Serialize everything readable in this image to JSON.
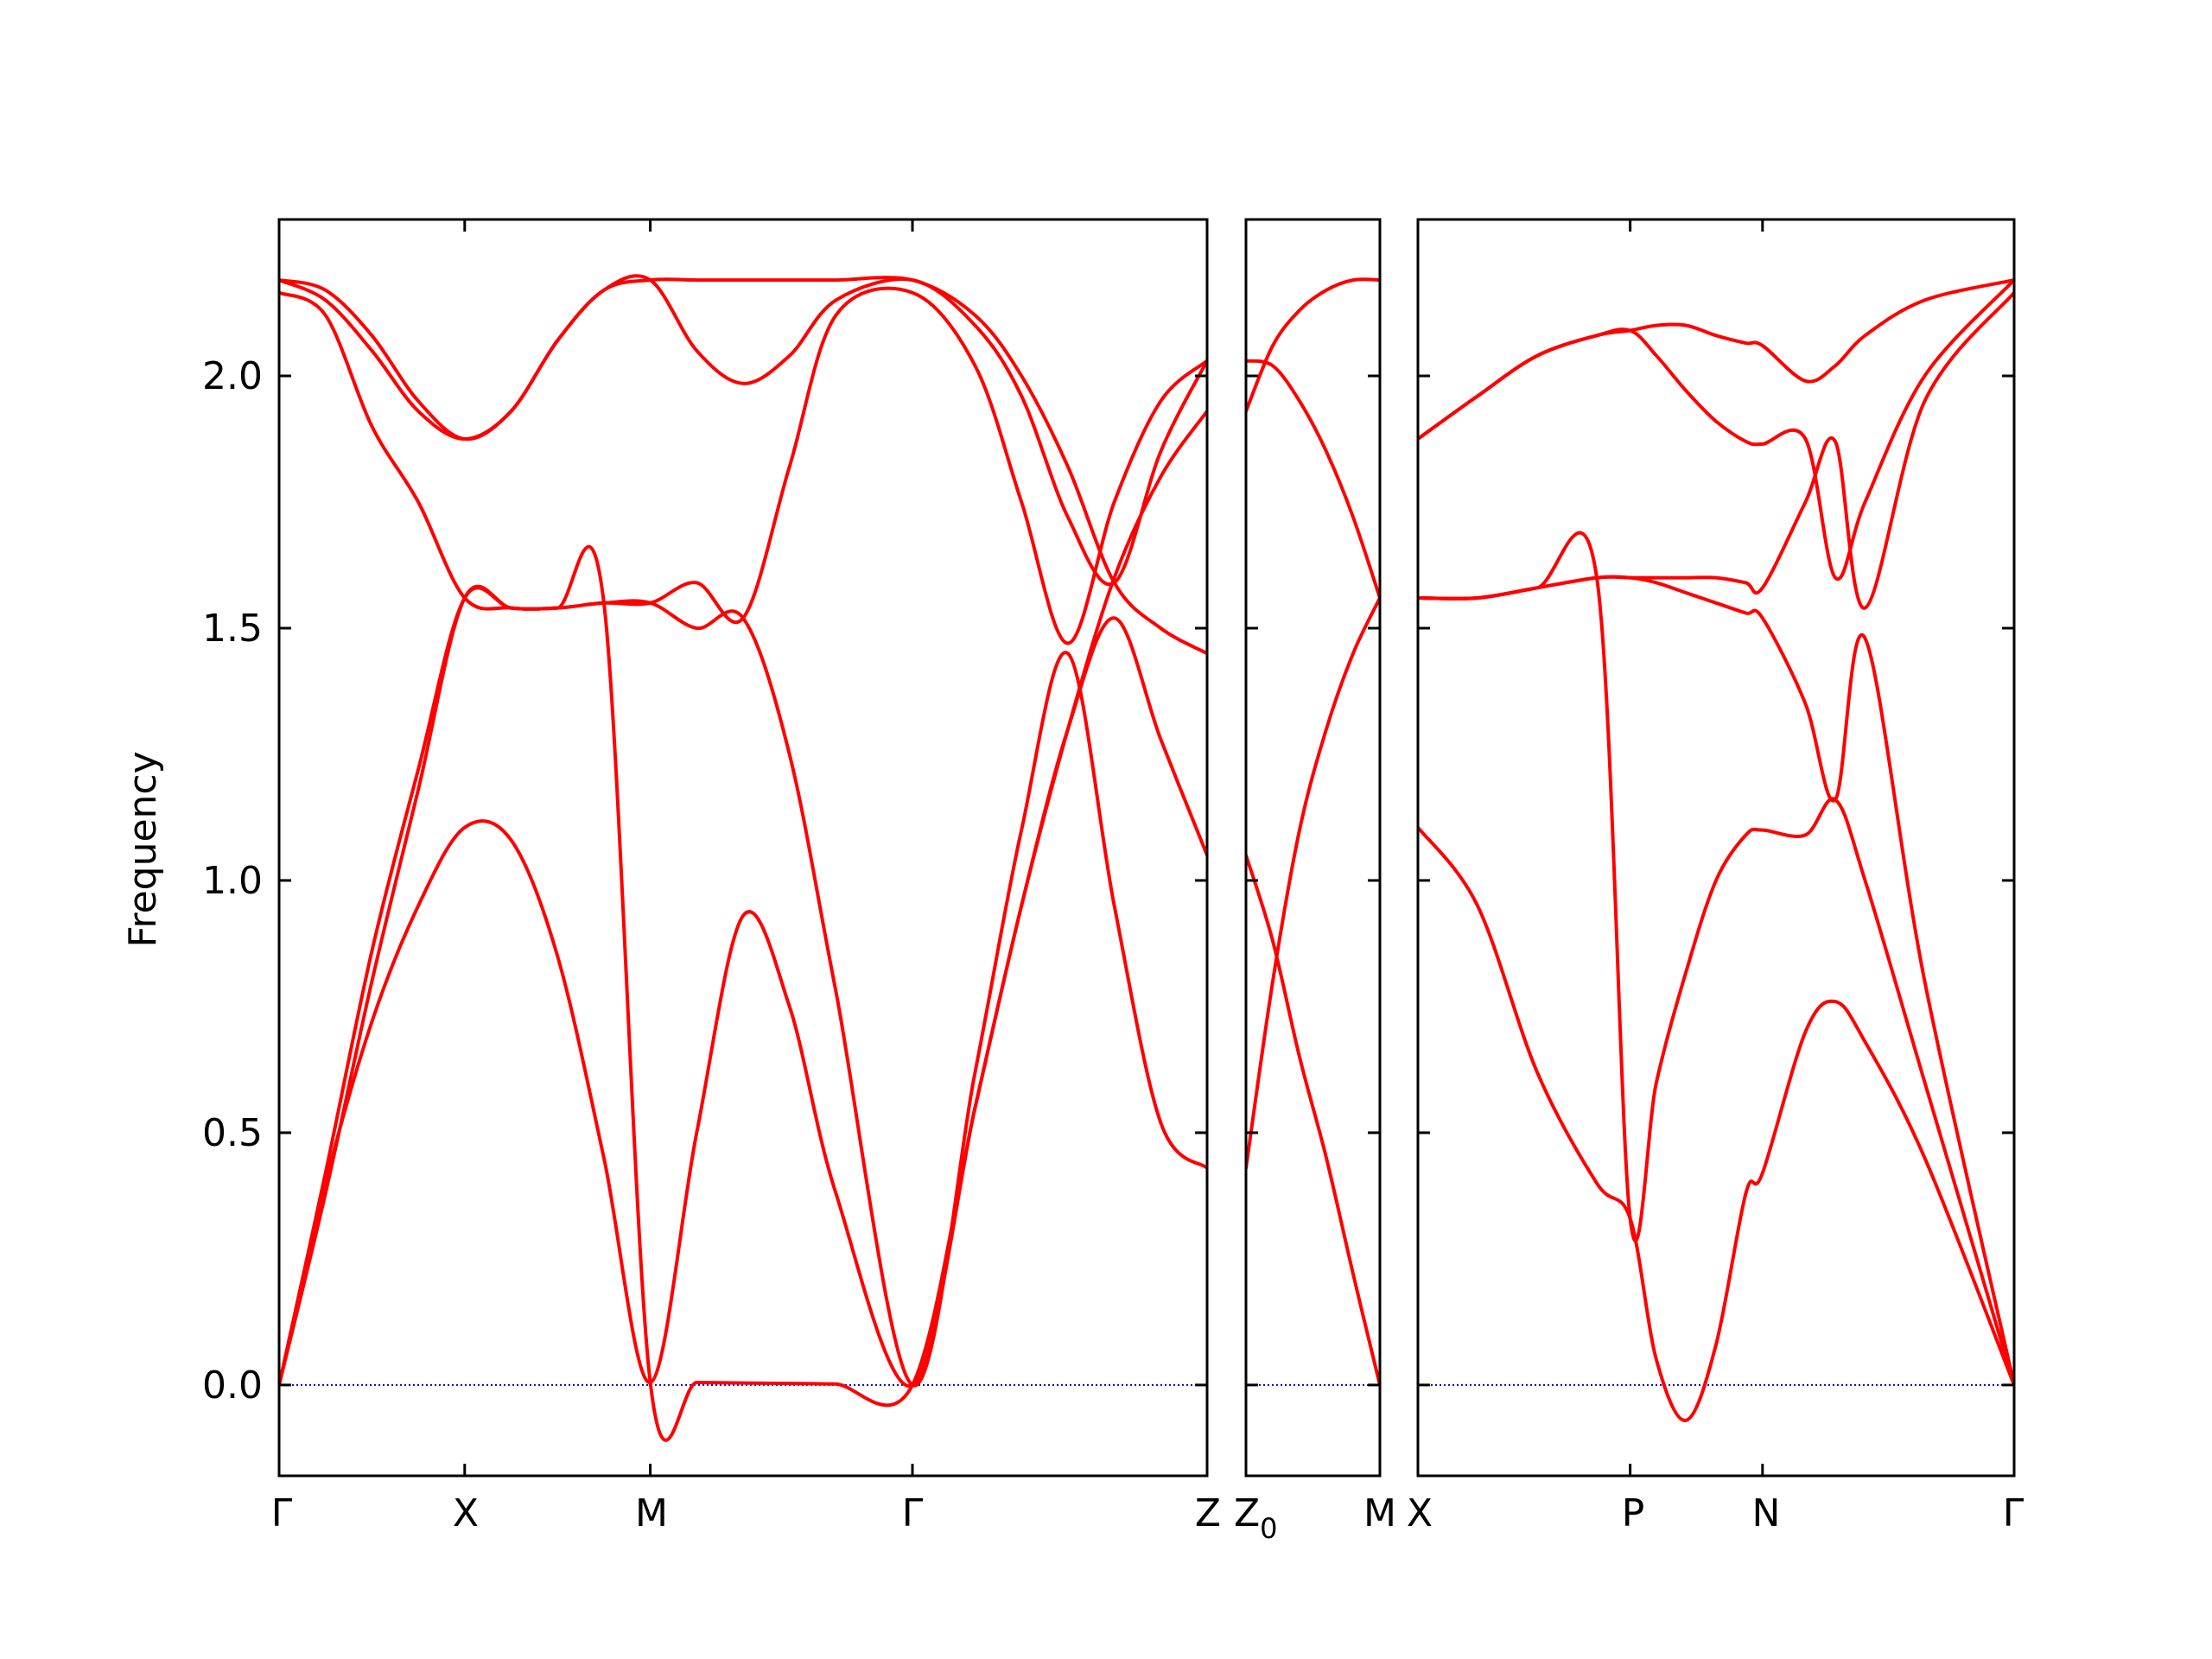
{
  "chart_data": {
    "type": "line",
    "title": "",
    "ylabel": "Frequency",
    "ylim": [
      -0.18,
      2.31
    ],
    "y_ticks": [
      "0.0",
      "0.5",
      "1.0",
      "1.5",
      "2.0"
    ],
    "y_tick_values": [
      0.0,
      0.5,
      1.0,
      1.5,
      2.0
    ],
    "zero_line_color": "#0000cc",
    "band_color": "#ff0000",
    "grid": false,
    "x_tick_labels": {
      "gamma1": "Γ",
      "x1": "X",
      "m1": "M",
      "gamma2": "Γ",
      "z": "Z",
      "z0": "Z",
      "z0_sub": "0",
      "m2": "M",
      "x2": "X",
      "p": "P",
      "n": "N",
      "gamma3": "Γ"
    },
    "panels": [
      {
        "labels": [
          "Γ",
          "X",
          "M",
          "Γ",
          "Z"
        ],
        "tick_positions": [
          0,
          0.2,
          0.4,
          0.6825,
          1.0
        ],
        "bands": [
          {
            "x": [
              0,
              0.05,
              0.1,
              0.15,
              0.2,
              0.25,
              0.3,
              0.35,
              0.4,
              0.45,
              0.5,
              0.55,
              0.6,
              0.6825,
              0.75,
              0.8,
              0.85,
              0.9,
              0.95,
              1.0
            ],
            "y": [
              0,
              0.4,
              0.72,
              0.95,
              1.105,
              1.08,
              0.85,
              0.45,
              0.005,
              0.5,
              0.93,
              0.75,
              0.38,
              0.0,
              0.55,
              0.95,
              1.3,
              1.52,
              1.28,
              1.05
            ]
          },
          {
            "x": [
              0,
              0.05,
              0.1,
              0.15,
              0.2,
              0.25,
              0.3,
              0.35,
              0.4,
              0.45,
              0.5,
              0.55,
              0.6,
              0.6825,
              0.75,
              0.8,
              0.85,
              0.9,
              0.95,
              1.0
            ],
            "y": [
              0,
              0.38,
              0.8,
              1.18,
              1.56,
              1.54,
              1.54,
              1.55,
              1.55,
              1.5,
              1.52,
              1.25,
              0.78,
              0.0,
              0.62,
              1.1,
              1.45,
              0.95,
              0.52,
              0.43
            ]
          },
          {
            "x": [
              0,
              0.05,
              0.1,
              0.15,
              0.2,
              0.25,
              0.3,
              0.35,
              0.4,
              0.45,
              0.5,
              0.55,
              0.6,
              0.6825,
              0.75,
              0.8,
              0.85,
              0.9,
              0.95,
              1.0
            ],
            "y": [
              0,
              0.42,
              0.86,
              1.22,
              1.56,
              1.54,
              1.54,
              1.55,
              1.55,
              1.59,
              1.52,
              1.82,
              2.12,
              2.165,
              2.02,
              1.75,
              1.47,
              1.75,
              1.95,
              2.03
            ]
          },
          {
            "x": [
              0,
              0.05,
              0.1,
              0.15,
              0.2,
              0.25,
              0.3,
              0.35,
              0.4,
              0.45,
              0.5,
              0.55,
              0.6,
              0.6825,
              0.75,
              0.8,
              0.85,
              0.9,
              0.95,
              1.0
            ],
            "y": [
              2.165,
              2.12,
              1.9,
              1.75,
              1.56,
              1.54,
              1.54,
              1.55,
              0.005,
              0.005,
              0.004,
              0.003,
              0.002,
              0.0,
              0.55,
              0.95,
              1.3,
              1.6,
              1.8,
              1.93
            ]
          },
          {
            "x": [
              0,
              0.05,
              0.1,
              0.15,
              0.2,
              0.25,
              0.3,
              0.35,
              0.4,
              0.45,
              0.5,
              0.55,
              0.6,
              0.6825,
              0.75,
              0.8,
              0.85,
              0.9,
              0.95,
              1.0
            ],
            "y": [
              2.19,
              2.15,
              2.05,
              1.93,
              1.875,
              1.93,
              2.07,
              2.17,
              2.19,
              2.05,
              1.985,
              2.04,
              2.15,
              2.19,
              2.1,
              1.96,
              1.72,
              1.59,
              1.85,
              2.03
            ]
          },
          {
            "x": [
              0,
              0.05,
              0.1,
              0.15,
              0.2,
              0.25,
              0.3,
              0.35,
              0.4,
              0.45,
              0.5,
              0.55,
              0.6,
              0.6825,
              0.75,
              0.8,
              0.85,
              0.9,
              0.95,
              1.0
            ],
            "y": [
              2.19,
              2.17,
              2.08,
              1.95,
              1.875,
              1.93,
              2.07,
              2.17,
              2.19,
              2.19,
              2.19,
              2.19,
              2.19,
              2.19,
              2.12,
              2.0,
              1.82,
              1.59,
              1.5,
              1.45
            ]
          }
        ]
      },
      {
        "labels": [
          "Z",
          "M"
        ],
        "tick_positions": [
          0,
          1.0
        ],
        "bands": [
          {
            "x": [
              0,
              0.2,
              0.4,
              0.6,
              0.8,
              1.0
            ],
            "y": [
              1.05,
              0.88,
              0.65,
              0.45,
              0.22,
              0.0
            ]
          },
          {
            "x": [
              0,
              0.2,
              0.4,
              0.6,
              0.8,
              1.0
            ],
            "y": [
              0.43,
              0.8,
              1.1,
              1.3,
              1.45,
              1.56
            ]
          },
          {
            "x": [
              0,
              0.2,
              0.4,
              0.6,
              0.8,
              1.0
            ],
            "y": [
              2.03,
              2.02,
              1.95,
              1.85,
              1.72,
              1.56
            ]
          },
          {
            "x": [
              0,
              0.2,
              0.4,
              0.6,
              0.8,
              1.0
            ],
            "y": [
              1.93,
              2.06,
              2.13,
              2.17,
              2.19,
              2.19
            ]
          }
        ]
      },
      {
        "labels": [
          "X",
          "P",
          "N",
          "Γ"
        ],
        "tick_positions": [
          0,
          0.356,
          0.578,
          1.0
        ],
        "bands": [
          {
            "x": [
              0,
              0.1,
              0.2,
              0.3,
              0.356,
              0.4,
              0.45,
              0.5,
              0.55,
              0.578,
              0.65,
              0.7,
              0.75,
              0.85,
              1.0
            ],
            "y": [
              1.105,
              0.95,
              0.62,
              0.4,
              0.33,
              0.05,
              -0.07,
              0.08,
              0.38,
              0.42,
              0.7,
              0.76,
              0.68,
              0.45,
              0.0
            ]
          },
          {
            "x": [
              0,
              0.1,
              0.2,
              0.3,
              0.356,
              0.4,
              0.45,
              0.5,
              0.55,
              0.578,
              0.65,
              0.7,
              0.75,
              0.85,
              1.0
            ],
            "y": [
              1.56,
              1.56,
              1.58,
              1.6,
              0.33,
              0.6,
              0.82,
              1.0,
              1.09,
              1.1,
              1.09,
              1.16,
              1.0,
              0.6,
              0.0
            ]
          },
          {
            "x": [
              0,
              0.1,
              0.2,
              0.3,
              0.356,
              0.4,
              0.45,
              0.5,
              0.55,
              0.578,
              0.65,
              0.7,
              0.75,
              0.85,
              1.0
            ],
            "y": [
              1.56,
              1.56,
              1.58,
              1.6,
              1.6,
              1.59,
              1.57,
              1.55,
              1.53,
              1.52,
              1.35,
              1.16,
              1.48,
              0.8,
              0.0
            ]
          },
          {
            "x": [
              0,
              0.1,
              0.2,
              0.3,
              0.356,
              0.4,
              0.45,
              0.5,
              0.55,
              0.578,
              0.65,
              0.7,
              0.75,
              0.85,
              1.0
            ],
            "y": [
              1.56,
              1.56,
              1.58,
              1.6,
              1.6,
              1.6,
              1.6,
              1.6,
              1.59,
              1.58,
              1.75,
              1.87,
              1.54,
              1.95,
              2.165
            ]
          },
          {
            "x": [
              0,
              0.1,
              0.2,
              0.3,
              0.356,
              0.4,
              0.45,
              0.5,
              0.55,
              0.578,
              0.65,
              0.7,
              0.75,
              0.85,
              1.0
            ],
            "y": [
              1.875,
              1.96,
              2.04,
              2.08,
              2.09,
              2.04,
              1.97,
              1.91,
              1.87,
              1.865,
              1.875,
              1.6,
              1.75,
              2.0,
              2.19
            ]
          },
          {
            "x": [
              0,
              0.1,
              0.2,
              0.3,
              0.356,
              0.4,
              0.45,
              0.5,
              0.55,
              0.578,
              0.65,
              0.7,
              0.75,
              0.85,
              1.0
            ],
            "y": [
              1.875,
              1.96,
              2.04,
              2.08,
              2.09,
              2.1,
              2.1,
              2.08,
              2.065,
              2.06,
              1.99,
              2.02,
              2.08,
              2.15,
              2.19
            ]
          }
        ]
      }
    ]
  }
}
